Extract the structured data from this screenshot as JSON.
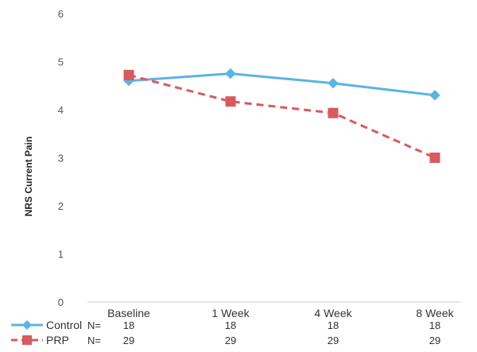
{
  "chart_data": {
    "type": "line",
    "xlabel": "",
    "ylabel": "NRS Current Pain",
    "ylim": [
      0,
      6
    ],
    "yticks": [
      "0",
      "1",
      "2",
      "3",
      "4",
      "5",
      "6"
    ],
    "categories": [
      "Baseline",
      "1 Week",
      "4 Week",
      "8 Week"
    ],
    "grid": false,
    "legend_placement": "bottom-left",
    "series": [
      {
        "name": "Control",
        "values": [
          4.6,
          4.75,
          4.55,
          4.3
        ],
        "color": "#5bb3e6",
        "line_style": "solid",
        "marker": "diamond",
        "n_label": "N=",
        "n_values": [
          "18",
          "18",
          "18",
          "18"
        ]
      },
      {
        "name": "PRP",
        "values": [
          4.72,
          4.17,
          3.93,
          3.0
        ],
        "color": "#d9595f",
        "line_style": "dashed",
        "marker": "square",
        "n_label": "N=",
        "n_values": [
          "29",
          "29",
          "29",
          "29"
        ]
      }
    ]
  }
}
